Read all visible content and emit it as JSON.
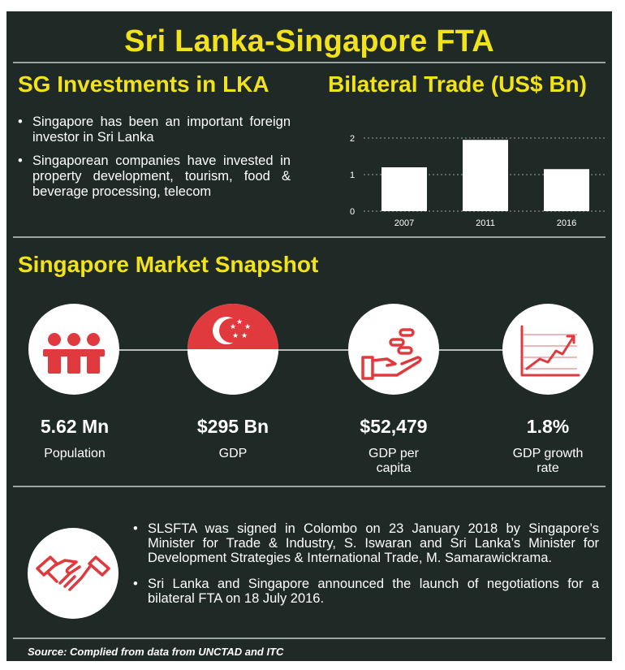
{
  "title": "Sri Lanka-Singapore FTA",
  "investments": {
    "heading": "SG Investments in LKA",
    "bullets": [
      "Singapore has been an important foreign investor in Sri Lanka",
      "Singaporean companies have invested in property development, tourism, food & beverage processing, telecom"
    ]
  },
  "trade": {
    "heading": "Bilateral Trade (US$ Bn)"
  },
  "chart_data": {
    "type": "bar",
    "title": "Bilateral Trade (US$ Bn)",
    "categories": [
      "2007",
      "2011",
      "2016"
    ],
    "values": [
      1.2,
      1.95,
      1.15
    ],
    "ylim": [
      0,
      2
    ],
    "yticks": [
      "0",
      "1",
      "2"
    ],
    "grid": true,
    "bar_color": "#ffffff",
    "grid_color": "#9aa4a0"
  },
  "snapshot": {
    "heading": "Singapore Market Snapshot",
    "stats": [
      {
        "value": "5.62  Mn",
        "label": "Population",
        "icon": "people-icon"
      },
      {
        "value": "$295 Bn",
        "label": "GDP",
        "icon": "singapore-flag-icon"
      },
      {
        "value": "$52,479",
        "label": "GDP per capita",
        "icon": "hand-coins-icon"
      },
      {
        "value": "1.8%",
        "label": "GDP growth rate",
        "icon": "growth-chart-icon"
      }
    ]
  },
  "agreement": {
    "icon": "handshake-icon",
    "bullets": [
      "SLSFTA was signed in Colombo on 23 January 2018 by Singapore’s Minister for Trade &  Industry, S. Iswaran and Sri Lanka’s Minister for Development  Strategies  &  International  Trade,  M. Samarawickrama.",
      "Sri Lanka and Singapore announced the launch of negotiations for a bilateral FTA on 18 July 2016."
    ]
  },
  "source": "Source: Complied from data from UNCTAD and ITC",
  "colors": {
    "background": "#1f2a26",
    "accent": "#f2e21a",
    "red": "#e03a3e"
  }
}
